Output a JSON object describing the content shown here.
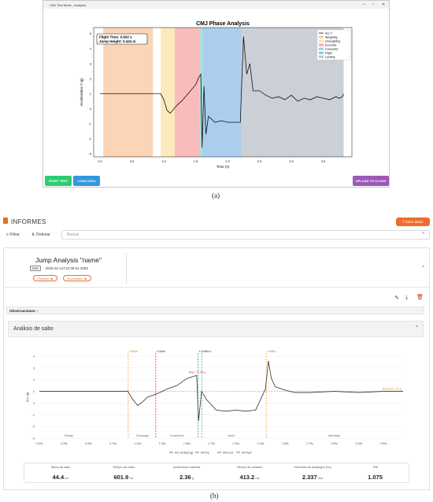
{
  "panel_a": {
    "window_title": "CMJ Test Mode - Analysis",
    "chart_title": "CMJ Phase Analysis",
    "annotation_line1": "Flight Time: 0.602 s",
    "annotation_line2": "Jump Height: 0.444 m",
    "buttons": {
      "start": "START TEST",
      "load": "LOAD DATA",
      "upload": "UPLOAD TO CLOUD"
    },
    "caption": "(a)"
  },
  "panel_b": {
    "header_title": "INFORMES",
    "upload_label": "Subir datos",
    "filter_label": "Filtrar",
    "sort_label": "Ordenar",
    "search_placeholder": "Buscar",
    "analysis_title": "Jump Analysis \"name\"",
    "device_tag": "IMU",
    "timestamp": "2026-02-11T10:38:02.400Z",
    "pill_primary": "Principal",
    "pill_secondary": "Secundario",
    "observations": "Observaciones: -",
    "section_title": "Análisis de salto",
    "metrics": [
      {
        "label": "Altura de salto",
        "value": "44.4",
        "unit": "cm"
      },
      {
        "label": "Tiempo de vuelo",
        "value": "601.9",
        "unit": "ms"
      },
      {
        "label": "Aceleración máxima",
        "value": "2.36",
        "unit": "g"
      },
      {
        "label": "Tiempo de contacto",
        "value": "413.2",
        "unit": "ms"
      },
      {
        "label": "Velocidad de despegue (Vo)",
        "value": "2.337",
        "unit": "m/s"
      },
      {
        "label": "RSI",
        "value": "1.075",
        "unit": ""
      }
    ],
    "caption": "(b)"
  },
  "colors": {
    "weighting": "#f9c79d",
    "unweighting": "#fbe3a6",
    "eccentric": "#f7a6a6",
    "concentric": "#8fd7cf",
    "flight": "#8fbde8",
    "landing": "#b9c0c8",
    "start": "#2ecc71",
    "load": "#3498db",
    "cloud": "#9b59b6",
    "accent": "#ef6c2e"
  },
  "chart_data": [
    {
      "type": "line",
      "title": "CMJ Phase Analysis",
      "xlabel": "Time (s)",
      "ylabel": "Acceleration Y (g)",
      "xlim": [
        -0.1,
        3.95
      ],
      "ylim": [
        -3.2,
        5.4
      ],
      "xticks": [
        "0.0",
        "0.5",
        "1.0",
        "1.5",
        "2.0",
        "2.5",
        "3.0",
        "3.5"
      ],
      "yticks": [
        "-3",
        "-2",
        "-1",
        "0",
        "1",
        "2",
        "3",
        "4",
        "5"
      ],
      "legend": [
        "Acc Y",
        "Weighting",
        "Unweighting",
        "Eccentric",
        "Concentric",
        "Flight",
        "Landing"
      ],
      "legend_position": "top-right",
      "phases": [
        {
          "name": "Weighting",
          "from": 0.05,
          "to": 0.83
        },
        {
          "name": "Unweighting",
          "from": 0.95,
          "to": 1.17
        },
        {
          "name": "Eccentric",
          "from": 1.17,
          "to": 1.56
        },
        {
          "name": "Concentric",
          "from": 1.56,
          "to": 1.61
        },
        {
          "name": "Flight",
          "from": 1.61,
          "to": 2.22
        },
        {
          "name": "Landing",
          "from": 2.22,
          "to": 3.82
        }
      ],
      "x": [
        0.0,
        0.2,
        0.4,
        0.6,
        0.8,
        0.95,
        1.0,
        1.05,
        1.1,
        1.2,
        1.3,
        1.4,
        1.5,
        1.55,
        1.58,
        1.6,
        1.63,
        1.66,
        1.7,
        1.8,
        1.9,
        2.0,
        2.1,
        2.2,
        2.22,
        2.25,
        2.3,
        2.35,
        2.4,
        2.5,
        2.6,
        2.7,
        2.8,
        2.9,
        3.0,
        3.1,
        3.2,
        3.3,
        3.4,
        3.5,
        3.6,
        3.7,
        3.75,
        3.8,
        3.82
      ],
      "y": [
        1.0,
        1.0,
        1.0,
        1.0,
        1.0,
        1.0,
        0.6,
        -0.1,
        -0.3,
        0.2,
        0.6,
        1.1,
        1.6,
        2.1,
        2.3,
        -2.6,
        1.5,
        -1.7,
        -0.5,
        -0.9,
        -0.8,
        -0.9,
        -0.9,
        -0.9,
        1.5,
        4.8,
        2.3,
        3.0,
        1.2,
        1.2,
        0.9,
        0.7,
        0.8,
        0.6,
        0.9,
        0.5,
        0.7,
        0.6,
        0.8,
        0.7,
        0.6,
        0.8,
        0.7,
        0.8,
        1.0
      ]
    },
    {
      "type": "line",
      "ylabel": "Acc (g)",
      "xlim": [
        0,
        3.7
      ],
      "ylim": [
        -3,
        4
      ],
      "xticks": [
        "0.00s",
        "0.25s",
        "0.50s",
        "0.75s",
        "1.00s",
        "1.25s",
        "1.50s",
        "1.75s",
        "2.00s",
        "2.25s",
        "2.50s",
        "2.75s",
        "3.00s",
        "3.25s",
        "3.50s",
        "3.75s"
      ],
      "yticks": [
        "-3",
        "-2",
        "-1",
        "0",
        "1",
        "2",
        "3",
        "4"
      ],
      "phase_labels": [
        "Pesaje",
        "Descarga",
        "Excéntrica",
        "Vuelo",
        "Aterrizaje"
      ],
      "markers": [
        {
          "label": "0.904s",
          "t": 0.904,
          "color": "#f0a030"
        },
        {
          "label": "1.184s",
          "t": 1.184,
          "color": "#e03030"
        },
        {
          "label": "1.614s",
          "t": 1.614,
          "color": "#2fa84f"
        },
        {
          "label": "1.654s",
          "t": 1.654,
          "color": "#4aa3df"
        },
        {
          "label": "2.308s",
          "t": 2.308,
          "color": "#f0a030"
        }
      ],
      "reference_label": "Baseline 1.00 g",
      "max_label": "Max = 2.36 g",
      "legend": [
        "Acc vertical (g)",
        "Ant-Ap",
        "Med-Lat",
        "Ant-Ap2"
      ],
      "x": [
        0.0,
        0.25,
        0.5,
        0.75,
        0.9,
        0.95,
        1.0,
        1.05,
        1.1,
        1.2,
        1.3,
        1.4,
        1.5,
        1.6,
        1.62,
        1.65,
        1.7,
        1.8,
        1.9,
        2.0,
        2.1,
        2.2,
        2.3,
        2.33,
        2.36,
        2.4,
        2.5,
        2.6,
        2.75,
        3.0,
        3.25,
        3.5,
        3.7
      ],
      "y": [
        1.0,
        1.0,
        1.0,
        1.0,
        1.0,
        0.3,
        -0.2,
        0.1,
        0.5,
        0.8,
        1.2,
        1.5,
        2.1,
        2.36,
        -1.5,
        1.0,
        0.3,
        -0.6,
        -0.7,
        -0.6,
        -0.7,
        -0.6,
        1.2,
        3.6,
        2.1,
        1.4,
        1.1,
        0.9,
        0.9,
        1.0,
        0.9,
        1.0,
        1.0
      ]
    }
  ]
}
